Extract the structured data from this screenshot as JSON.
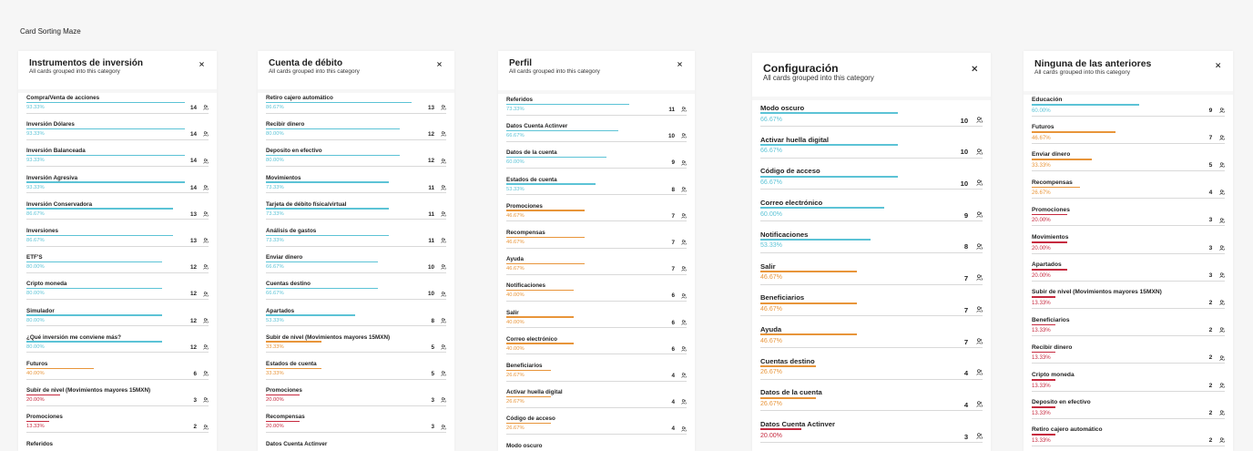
{
  "page_title": "Card Sorting Maze",
  "colors": {
    "high": "#5cc3d6",
    "mid": "#e8953a",
    "low": "#c62a3f",
    "track": "#d9d9d9"
  },
  "cards": [
    {
      "title": "Instrumentos de inversión",
      "subtitle": "All cards grouped into this category",
      "items": [
        {
          "label": "Compra/Venta de acciones",
          "percent": "93.33%",
          "count": 14
        },
        {
          "label": "Inversión Dólares",
          "percent": "93.33%",
          "count": 14
        },
        {
          "label": "Inversión Balanceada",
          "percent": "93.33%",
          "count": 14
        },
        {
          "label": "Inversión Agresiva",
          "percent": "93.33%",
          "count": 14
        },
        {
          "label": "Inversión Conservadora",
          "percent": "86.67%",
          "count": 13
        },
        {
          "label": "Inversiones",
          "percent": "86.67%",
          "count": 13
        },
        {
          "label": "ETF'S",
          "percent": "80.00%",
          "count": 12
        },
        {
          "label": "Cripto moneda",
          "percent": "80.00%",
          "count": 12
        },
        {
          "label": "Simulador",
          "percent": "80.00%",
          "count": 12
        },
        {
          "label": "¿Qué inversión me conviene más?",
          "percent": "80.00%",
          "count": 12
        },
        {
          "label": "Futuros",
          "percent": "40.00%",
          "count": 6
        },
        {
          "label": "Subir de nivel (Movimientos mayores 15MXN)",
          "percent": "20.00%",
          "count": 3
        },
        {
          "label": "Promociones",
          "percent": "13.33%",
          "count": 2
        },
        {
          "label": "Referidos"
        }
      ]
    },
    {
      "title": "Cuenta de débito",
      "subtitle": "All cards grouped into this category",
      "items": [
        {
          "label": "Retiro cajero automático",
          "percent": "86.67%",
          "count": 13
        },
        {
          "label": "Recibir dinero",
          "percent": "80.00%",
          "count": 12
        },
        {
          "label": "Deposito en efectivo",
          "percent": "80.00%",
          "count": 12
        },
        {
          "label": "Movimientos",
          "percent": "73.33%",
          "count": 11
        },
        {
          "label": "Tarjeta de débito física/virtual",
          "percent": "73.33%",
          "count": 11
        },
        {
          "label": "Análisis de gastos",
          "percent": "73.33%",
          "count": 11
        },
        {
          "label": "Enviar dinero",
          "percent": "66.67%",
          "count": 10
        },
        {
          "label": "Cuentas destino",
          "percent": "66.67%",
          "count": 10
        },
        {
          "label": "Apartados",
          "percent": "53.33%",
          "count": 8
        },
        {
          "label": "Subir de nivel (Movimientos mayores 15MXN)",
          "percent": "33.33%",
          "count": 5
        },
        {
          "label": "Estados de cuenta",
          "percent": "33.33%",
          "count": 5
        },
        {
          "label": "Promociones",
          "percent": "20.00%",
          "count": 3
        },
        {
          "label": "Recompensas",
          "percent": "20.00%",
          "count": 3
        },
        {
          "label": "Datos Cuenta Actinver"
        }
      ]
    },
    {
      "title": "Perfil",
      "subtitle": "All cards grouped into this category",
      "items": [
        {
          "label": "Referidos",
          "percent": "73.33%",
          "count": 11
        },
        {
          "label": "Datos Cuenta Actinver",
          "percent": "66.67%",
          "count": 10
        },
        {
          "label": "Datos de la cuenta",
          "percent": "60.00%",
          "count": 9
        },
        {
          "label": "Estados de cuenta",
          "percent": "53.33%",
          "count": 8
        },
        {
          "label": "Promociones",
          "percent": "46.67%",
          "count": 7
        },
        {
          "label": "Recompensas",
          "percent": "46.67%",
          "count": 7
        },
        {
          "label": "Ayuda",
          "percent": "46.67%",
          "count": 7
        },
        {
          "label": "Notificaciones",
          "percent": "40.00%",
          "count": 6
        },
        {
          "label": "Salir",
          "percent": "40.00%",
          "count": 6
        },
        {
          "label": "Correo electrónico",
          "percent": "40.00%",
          "count": 6
        },
        {
          "label": "Beneficiarios",
          "percent": "26.67%",
          "count": 4
        },
        {
          "label": "Activar huella digital",
          "percent": "26.67%",
          "count": 4
        },
        {
          "label": "Código de acceso",
          "percent": "26.67%",
          "count": 4
        },
        {
          "label": "Modo oscuro"
        }
      ]
    },
    {
      "title": "Configuración",
      "subtitle": "All cards grouped into this category",
      "items": [
        {
          "label": "Modo oscuro",
          "percent": "66.67%",
          "count": 10
        },
        {
          "label": "Activar huella digital",
          "percent": "66.67%",
          "count": 10
        },
        {
          "label": "Código de acceso",
          "percent": "66.67%",
          "count": 10
        },
        {
          "label": "Correo electrónico",
          "percent": "60.00%",
          "count": 9
        },
        {
          "label": "Notificaciones",
          "percent": "53.33%",
          "count": 8
        },
        {
          "label": "Salir",
          "percent": "46.67%",
          "count": 7
        },
        {
          "label": "Beneficiarios",
          "percent": "46.67%",
          "count": 7
        },
        {
          "label": "Ayuda",
          "percent": "46.67%",
          "count": 7
        },
        {
          "label": "Cuentas destino",
          "percent": "26.67%",
          "count": 4
        },
        {
          "label": "Datos de la cuenta",
          "percent": "26.67%",
          "count": 4
        },
        {
          "label": "Datos Cuenta Actinver",
          "percent": "20.00%",
          "count": 3
        }
      ]
    },
    {
      "title": "Ninguna de las anteriores",
      "subtitle": "All cards grouped into this category",
      "items": [
        {
          "label": "Educación",
          "percent": "60.00%",
          "count": 9
        },
        {
          "label": "Futuros",
          "percent": "46.67%",
          "count": 7
        },
        {
          "label": "Enviar dinero",
          "percent": "33.33%",
          "count": 5
        },
        {
          "label": "Recompensas",
          "percent": "26.67%",
          "count": 4
        },
        {
          "label": "Promociones",
          "percent": "20.00%",
          "count": 3
        },
        {
          "label": "Movimientos",
          "percent": "20.00%",
          "count": 3
        },
        {
          "label": "Apartados",
          "percent": "20.00%",
          "count": 3
        },
        {
          "label": "Subir de nivel (Movimientos mayores 15MXN)",
          "percent": "13.33%",
          "count": 2
        },
        {
          "label": "Beneficiarios",
          "percent": "13.33%",
          "count": 2
        },
        {
          "label": "Recibir dinero",
          "percent": "13.33%",
          "count": 2
        },
        {
          "label": "Cripto moneda",
          "percent": "13.33%",
          "count": 2
        },
        {
          "label": "Deposito en efectivo",
          "percent": "13.33%",
          "count": 2
        },
        {
          "label": "Retiro cajero automático",
          "percent": "13.33%",
          "count": 2
        }
      ]
    }
  ]
}
